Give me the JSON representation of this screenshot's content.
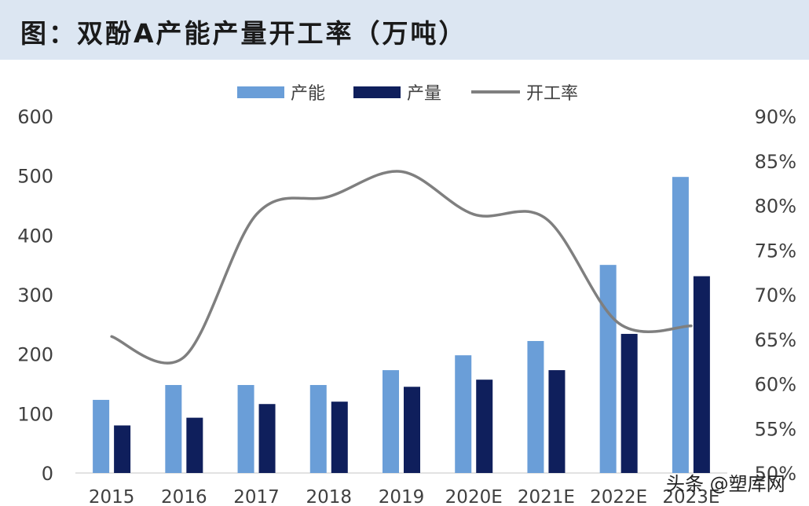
{
  "title": "图：双酚A产能产量开工率（万吨）",
  "watermark": "头条 @塑库网",
  "colors": {
    "capacity": "#6a9ed8",
    "output": "#0f1f5c",
    "rate": "#7f7f7f"
  },
  "chart_data": {
    "type": "bar",
    "title": "图：双酚A产能产量开工率（万吨）",
    "categories": [
      "2015",
      "2016",
      "2017",
      "2018",
      "2019",
      "2020E",
      "2021E",
      "2022E",
      "2023E"
    ],
    "series": [
      {
        "name": "产能",
        "type": "bar",
        "axis": "left",
        "values": [
          123,
          148,
          148,
          148,
          173,
          198,
          222,
          350,
          498
        ]
      },
      {
        "name": "产量",
        "type": "bar",
        "axis": "left",
        "values": [
          80,
          93,
          116,
          120,
          145,
          157,
          173,
          234,
          331
        ]
      },
      {
        "name": "开工率",
        "type": "line",
        "axis": "right",
        "values": [
          65.3,
          63.0,
          79.0,
          81.0,
          83.8,
          79.0,
          78.5,
          66.8,
          66.5
        ]
      }
    ],
    "y_left": {
      "min": 0,
      "max": 600,
      "ticks": [
        "0",
        "100",
        "200",
        "300",
        "400",
        "500",
        "600"
      ]
    },
    "y_right": {
      "min": 50,
      "max": 90,
      "ticks": [
        "50%",
        "55%",
        "60%",
        "65%",
        "70%",
        "75%",
        "80%",
        "85%",
        "90%"
      ]
    },
    "legend": [
      "产能",
      "产量",
      "开工率"
    ],
    "legend_position": "top-center",
    "grid": false
  }
}
